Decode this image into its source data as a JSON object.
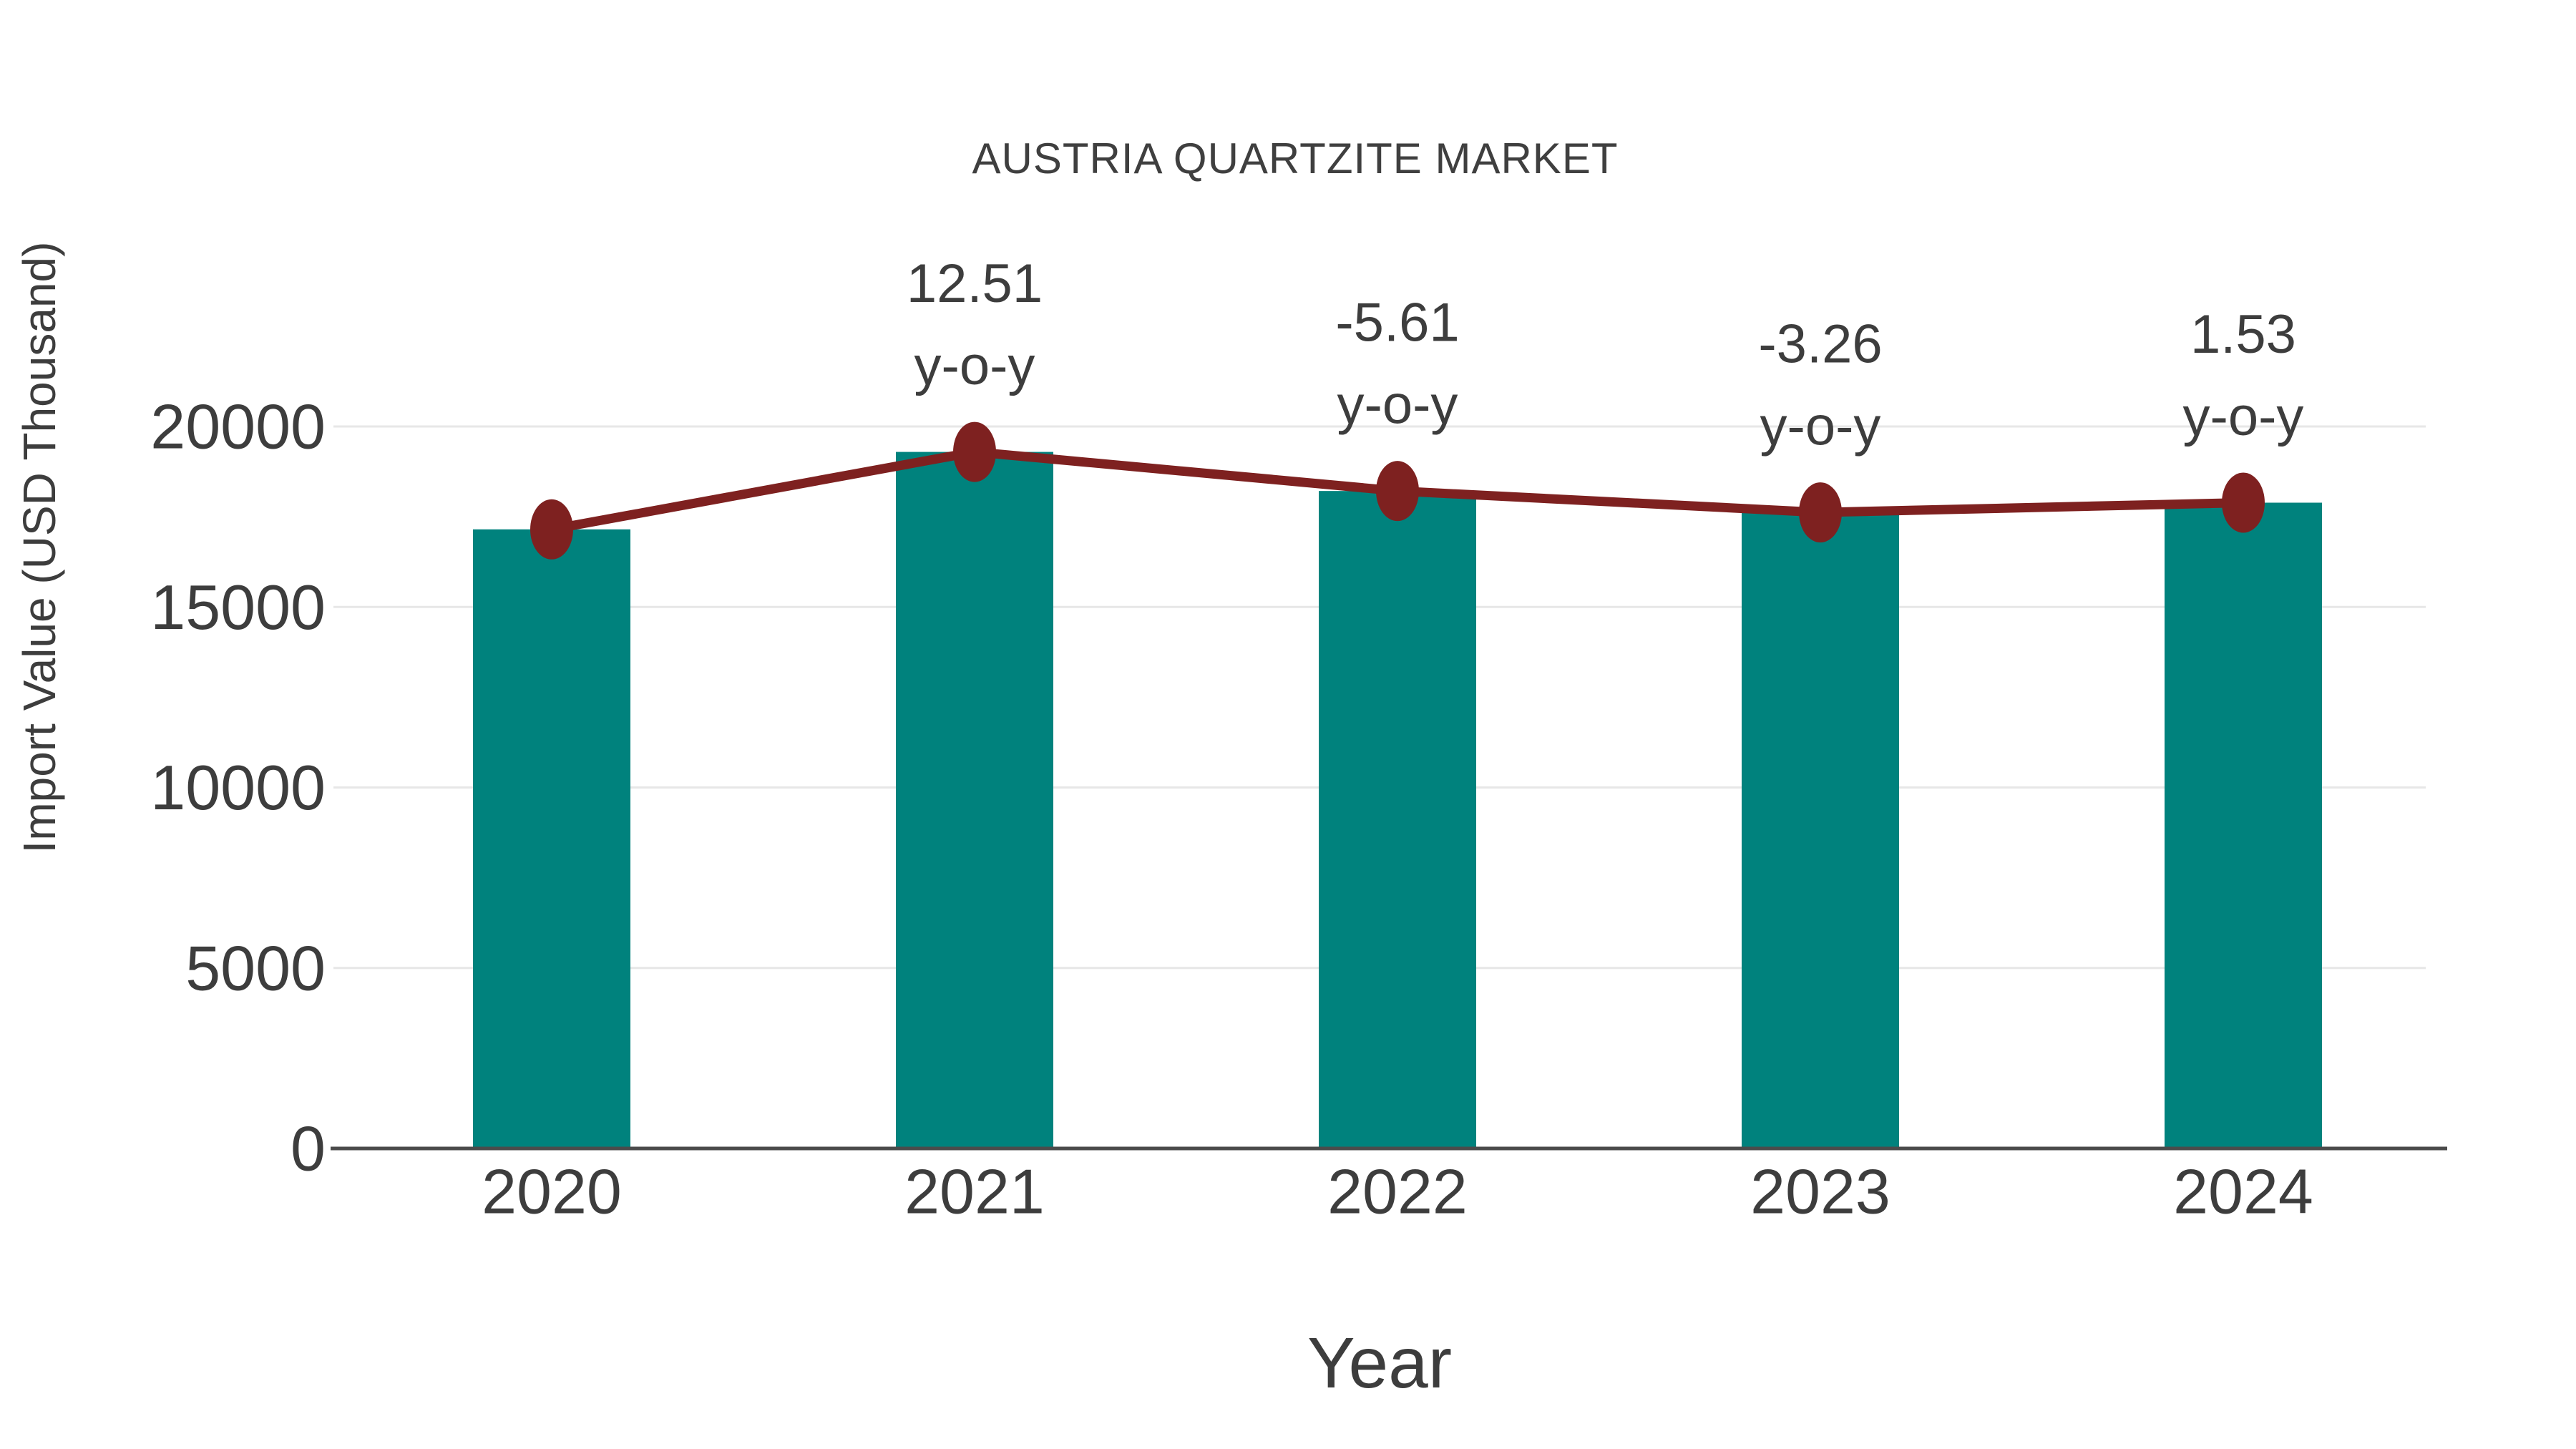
{
  "chart_data": {
    "type": "bar",
    "title": "AUSTRIA QUARTZITE MARKET",
    "xlabel": "Year",
    "ylabel": "Import Value (USD Thousand)",
    "categories": [
      "2020",
      "2021",
      "2022",
      "2023",
      "2024"
    ],
    "series": [
      {
        "name": "Import Value bars",
        "type": "bar",
        "values": [
          17150,
          19295,
          18213,
          17619,
          17889
        ]
      },
      {
        "name": "Import Value trend line",
        "type": "line",
        "values": [
          17150,
          19295,
          18213,
          17619,
          17889
        ]
      }
    ],
    "yoy_percent": [
      null,
      12.51,
      -5.61,
      -3.26,
      1.53
    ],
    "annotations": [
      {
        "category": "2021",
        "line1": "12.51",
        "line2": "y-o-y"
      },
      {
        "category": "2022",
        "line1": "-5.61",
        "line2": "y-o-y"
      },
      {
        "category": "2023",
        "line1": "-3.26",
        "line2": "y-o-y"
      },
      {
        "category": "2024",
        "line1": "1.53",
        "line2": "y-o-y"
      }
    ],
    "yticks": [
      0,
      5000,
      10000,
      15000,
      20000
    ],
    "ylim": [
      0,
      21500
    ],
    "grid": "horizontal",
    "legend": "none",
    "colors": {
      "bar": "#00827d",
      "line": "#7e2120",
      "marker": "#7e2120",
      "text": "#3d3d3d",
      "grid": "#e7e7e7",
      "axis": "#4b4b4b",
      "background": "#ffffff"
    }
  }
}
